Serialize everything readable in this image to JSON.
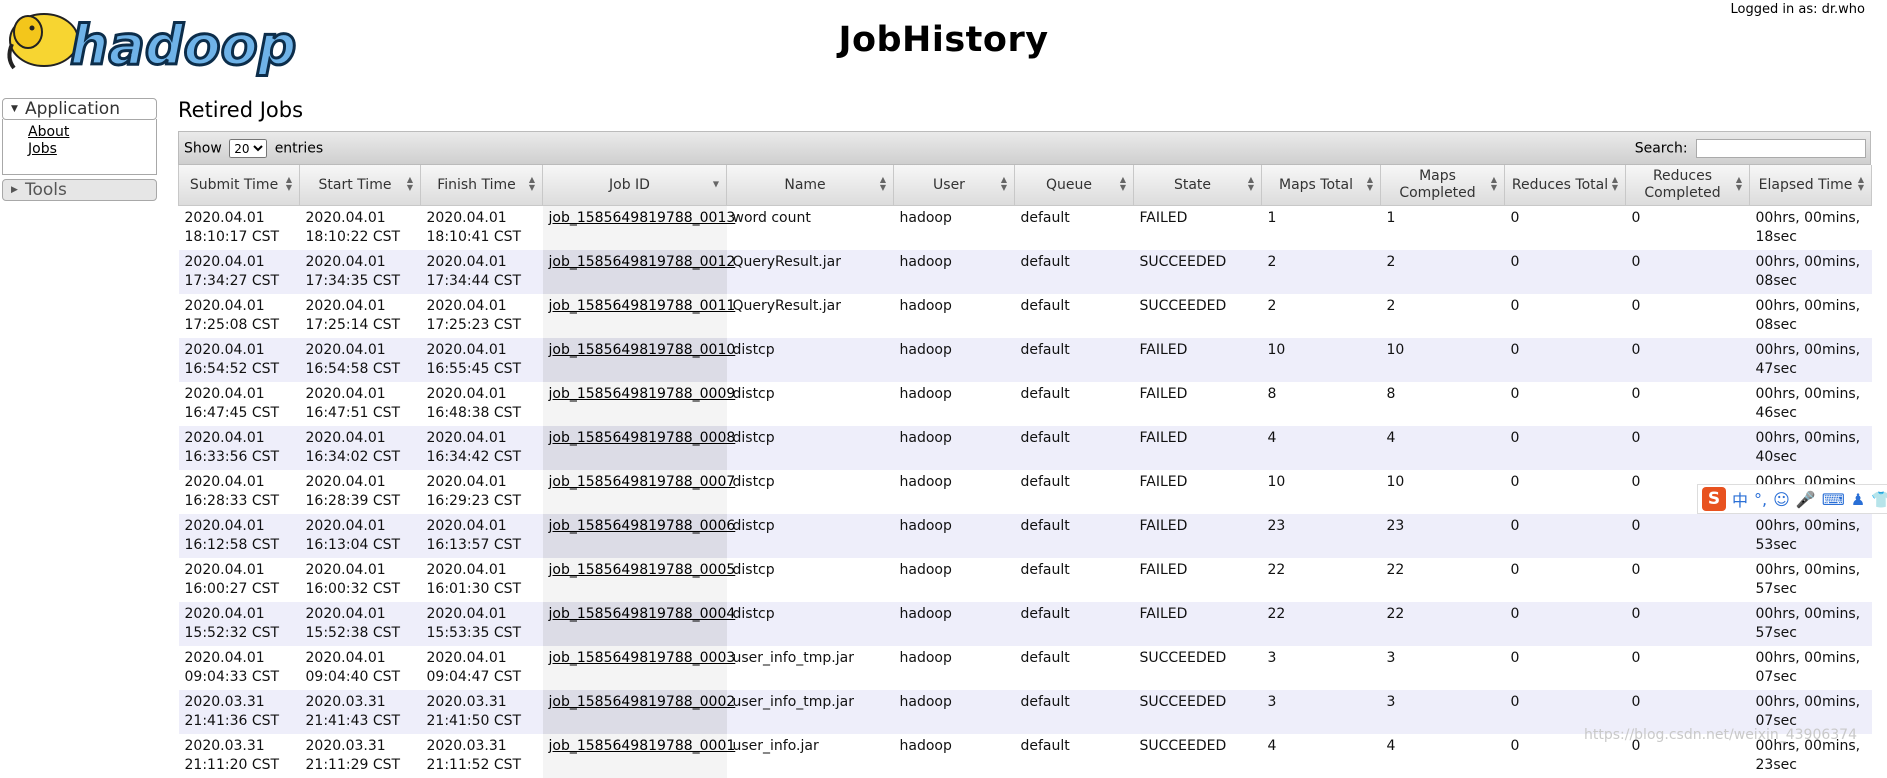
{
  "header": {
    "logo_text": "hadoop",
    "title": "JobHistory",
    "user": "Logged in as: dr.who"
  },
  "nav": {
    "application_label": "Application",
    "items": [
      {
        "label": "About"
      },
      {
        "label": "Jobs"
      }
    ],
    "tools_label": "Tools"
  },
  "section_title": "Retired Jobs",
  "toolbar": {
    "show_label": "Show",
    "entries_value": "20",
    "entries_label": "entries",
    "search_label": "Search:",
    "search_value": ""
  },
  "table": {
    "columns": [
      "Submit Time",
      "Start Time",
      "Finish Time",
      "Job ID",
      "Name",
      "User",
      "Queue",
      "State",
      "Maps Total",
      "Maps Completed",
      "Reduces Total",
      "Reduces Completed",
      "Elapsed Time"
    ],
    "rows": [
      [
        "2020.04.01 18:10:17 CST",
        "2020.04.01 18:10:22 CST",
        "2020.04.01 18:10:41 CST",
        "job_1585649819788_0013",
        "word count",
        "hadoop",
        "default",
        "FAILED",
        "1",
        "1",
        "0",
        "0",
        "00hrs, 00mins, 18sec"
      ],
      [
        "2020.04.01 17:34:27 CST",
        "2020.04.01 17:34:35 CST",
        "2020.04.01 17:34:44 CST",
        "job_1585649819788_0012",
        "QueryResult.jar",
        "hadoop",
        "default",
        "SUCCEEDED",
        "2",
        "2",
        "0",
        "0",
        "00hrs, 00mins, 08sec"
      ],
      [
        "2020.04.01 17:25:08 CST",
        "2020.04.01 17:25:14 CST",
        "2020.04.01 17:25:23 CST",
        "job_1585649819788_0011",
        "QueryResult.jar",
        "hadoop",
        "default",
        "SUCCEEDED",
        "2",
        "2",
        "0",
        "0",
        "00hrs, 00mins, 08sec"
      ],
      [
        "2020.04.01 16:54:52 CST",
        "2020.04.01 16:54:58 CST",
        "2020.04.01 16:55:45 CST",
        "job_1585649819788_0010",
        "distcp",
        "hadoop",
        "default",
        "FAILED",
        "10",
        "10",
        "0",
        "0",
        "00hrs, 00mins, 47sec"
      ],
      [
        "2020.04.01 16:47:45 CST",
        "2020.04.01 16:47:51 CST",
        "2020.04.01 16:48:38 CST",
        "job_1585649819788_0009",
        "distcp",
        "hadoop",
        "default",
        "FAILED",
        "8",
        "8",
        "0",
        "0",
        "00hrs, 00mins, 46sec"
      ],
      [
        "2020.04.01 16:33:56 CST",
        "2020.04.01 16:34:02 CST",
        "2020.04.01 16:34:42 CST",
        "job_1585649819788_0008",
        "distcp",
        "hadoop",
        "default",
        "FAILED",
        "4",
        "4",
        "0",
        "0",
        "00hrs, 00mins, 40sec"
      ],
      [
        "2020.04.01 16:28:33 CST",
        "2020.04.01 16:28:39 CST",
        "2020.04.01 16:29:23 CST",
        "job_1585649819788_0007",
        "distcp",
        "hadoop",
        "default",
        "FAILED",
        "10",
        "10",
        "0",
        "0",
        "00hrs, 00mins,"
      ],
      [
        "2020.04.01 16:12:58 CST",
        "2020.04.01 16:13:04 CST",
        "2020.04.01 16:13:57 CST",
        "job_1585649819788_0006",
        "distcp",
        "hadoop",
        "default",
        "FAILED",
        "23",
        "23",
        "0",
        "0",
        "00hrs, 00mins, 53sec"
      ],
      [
        "2020.04.01 16:00:27 CST",
        "2020.04.01 16:00:32 CST",
        "2020.04.01 16:01:30 CST",
        "job_1585649819788_0005",
        "distcp",
        "hadoop",
        "default",
        "FAILED",
        "22",
        "22",
        "0",
        "0",
        "00hrs, 00mins, 57sec"
      ],
      [
        "2020.04.01 15:52:32 CST",
        "2020.04.01 15:52:38 CST",
        "2020.04.01 15:53:35 CST",
        "job_1585649819788_0004",
        "distcp",
        "hadoop",
        "default",
        "FAILED",
        "22",
        "22",
        "0",
        "0",
        "00hrs, 00mins, 57sec"
      ],
      [
        "2020.04.01 09:04:33 CST",
        "2020.04.01 09:04:40 CST",
        "2020.04.01 09:04:47 CST",
        "job_1585649819788_0003",
        "user_info_tmp.jar",
        "hadoop",
        "default",
        "SUCCEEDED",
        "3",
        "3",
        "0",
        "0",
        "00hrs, 00mins, 07sec"
      ],
      [
        "2020.03.31 21:41:36 CST",
        "2020.03.31 21:41:43 CST",
        "2020.03.31 21:41:50 CST",
        "job_1585649819788_0002",
        "user_info_tmp.jar",
        "hadoop",
        "default",
        "SUCCEEDED",
        "3",
        "3",
        "0",
        "0",
        "00hrs, 00mins, 07sec"
      ],
      [
        "2020.03.31 21:11:20 CST",
        "2020.03.31 21:11:29 CST",
        "2020.03.31 21:11:52 CST",
        "job_1585649819788_0001",
        "user_info.jar",
        "hadoop",
        "default",
        "SUCCEEDED",
        "4",
        "4",
        "0",
        "0",
        "00hrs, 00mins, 23sec"
      ]
    ]
  },
  "ime_toolbar": {
    "logo": "S",
    "lang": "中"
  },
  "watermark": "https://blog.csdn.net/weixin_43906374"
}
